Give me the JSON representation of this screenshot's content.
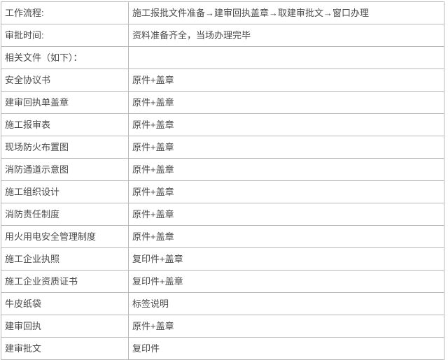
{
  "page": {
    "background_color": "#ffffff",
    "border_color": "#b9b9b9",
    "text_color": "#4a4a4a"
  },
  "table": {
    "rows": [
      {
        "label": "工作流程:",
        "value": "施工报批文件准备→建审回执盖章→取建审批文→窗口办理"
      },
      {
        "label": "审批时间:",
        "value": "资料准备齐全，当场办理完毕"
      },
      {
        "label": "相关文件（如下）：",
        "value": ""
      },
      {
        "label": "安全协议书",
        "value": "原件+盖章"
      },
      {
        "label": "建审回执单盖章",
        "value": "原件+盖章"
      },
      {
        "label": "施工报审表",
        "value": "原件+盖章"
      },
      {
        "label": "现场防火布置图",
        "value": "原件+盖章"
      },
      {
        "label": "消防通道示意图",
        "value": "原件+盖章"
      },
      {
        "label": "施工组织设计",
        "value": "原件+盖章"
      },
      {
        "label": "消防责任制度",
        "value": "原件+盖章"
      },
      {
        "label": "用火用电安全管理制度",
        "value": "原件+盖章"
      },
      {
        "label": "施工企业执照",
        "value": "复印件+盖章"
      },
      {
        "label": "施工企业资质证书",
        "value": "复印件+盖章"
      },
      {
        "label": "牛皮纸袋",
        "value": "标签说明"
      },
      {
        "label": "建审回执",
        "value": "原件+盖章"
      },
      {
        "label": "建审批文",
        "value": "复印件"
      }
    ]
  }
}
